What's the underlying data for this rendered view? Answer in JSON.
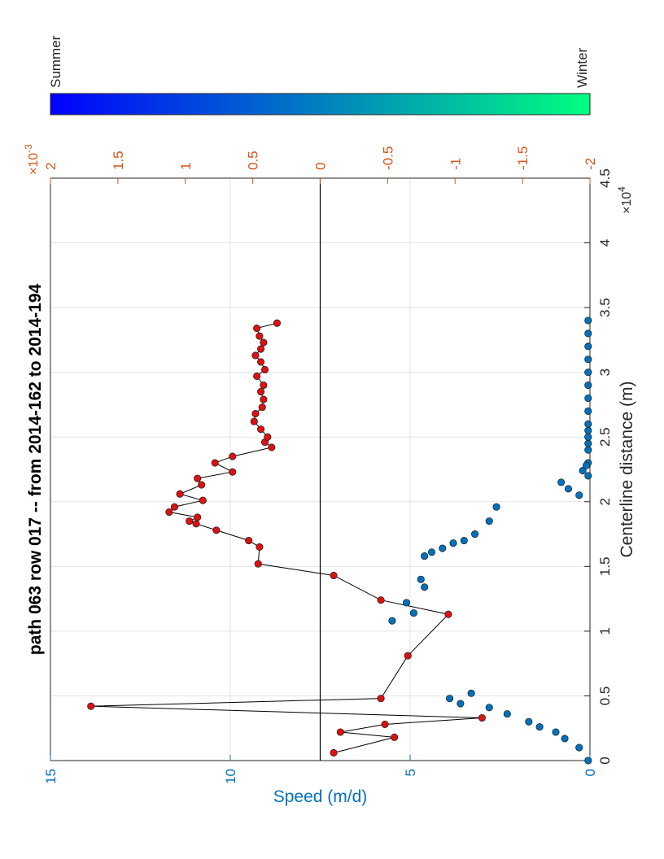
{
  "chart_data": {
    "type": "scatter",
    "title": "path 063 row 017  -- from 2014-162 to 2014-194",
    "xlabel": "Centerline distance (m)",
    "ylabel": "Speed (m/d)",
    "x_exponent": "×10",
    "x_exponent_power": "4",
    "right_axis_exponent": "×10",
    "right_axis_exponent_power": "-3",
    "xlim": [
      0,
      45000
    ],
    "ylim": [
      0,
      15
    ],
    "right_ylim": [
      -0.002,
      0.002
    ],
    "x_ticks": [
      0,
      5000,
      10000,
      15000,
      20000,
      25000,
      30000,
      35000,
      40000,
      45000
    ],
    "x_tick_labels": [
      "0",
      "0.5",
      "1",
      "1.5",
      "2",
      "2.5",
      "3",
      "3.5",
      "4",
      "4.5"
    ],
    "y_ticks": [
      0,
      5,
      10,
      15
    ],
    "y_tick_labels": [
      "0",
      "5",
      "10",
      "15"
    ],
    "right_ticks": [
      -0.002,
      -0.0015,
      -0.001,
      -0.0005,
      0,
      0.0005,
      0.001,
      0.0015,
      0.002
    ],
    "right_tick_labels": [
      "-2",
      "-1.5",
      "-1",
      "-0.5",
      "0",
      "0.5",
      "1",
      "1.5",
      "2"
    ],
    "grid": true,
    "colors": {
      "speed_axis": "#0072BD",
      "strain_axis": "#D95319",
      "speed_points": "#0072BD",
      "strain_points": "#DD1111",
      "zero_line": "#000000",
      "colorbar_start": "#00FF80",
      "colorbar_end": "#0000FF"
    },
    "colorbar": {
      "label_start": "Summer",
      "label_end": "Winter"
    },
    "series": [
      {
        "axis": "left",
        "style": "markers",
        "x": [
          0,
          1000,
          1700,
          2200,
          2600,
          3000,
          3600,
          4100,
          4400,
          4800,
          5200,
          22000,
          23000,
          24000,
          24500,
          25000,
          25500,
          26000,
          27000,
          28000,
          29000,
          30000,
          31000,
          32000,
          33000,
          34000,
          20500,
          21000,
          21500,
          22400,
          22800,
          19600,
          18500,
          17500,
          17000,
          16800,
          16400,
          16100,
          15800,
          14000,
          13400,
          12200,
          11400,
          10800
        ],
        "y": [
          0.05,
          0.3,
          0.7,
          0.95,
          1.4,
          1.7,
          2.3,
          2.8,
          3.6,
          3.9,
          3.3,
          0.05,
          0.05,
          0.05,
          0.05,
          0.05,
          0.05,
          0.05,
          0.05,
          0.05,
          0.05,
          0.05,
          0.05,
          0.05,
          0.05,
          0.05,
          0.3,
          0.6,
          0.8,
          0.2,
          0.1,
          2.6,
          2.8,
          3.2,
          3.5,
          3.8,
          4.1,
          4.4,
          4.6,
          4.7,
          4.6,
          5.1,
          4.9,
          5.5
        ]
      },
      {
        "axis": "right",
        "style": "line-markers",
        "x": [
          600,
          1800,
          2200,
          2800,
          3300,
          4200,
          4800,
          8100,
          11300,
          12400,
          14300,
          15200,
          16500,
          17000,
          17800,
          18300,
          18500,
          18800,
          19200,
          19600,
          20100,
          20600,
          21300,
          21800,
          22300,
          23000,
          23500,
          24200,
          24600,
          25000,
          25600,
          26200,
          26800,
          27300,
          27900,
          28500,
          29000,
          29700,
          30200,
          30800,
          31300,
          31800,
          32300,
          32800,
          33400,
          33800
        ],
        "y": [
          -0.0001,
          -0.00055,
          -0.00015,
          -0.00048,
          -0.0012,
          0.0017,
          -0.00045,
          -0.00065,
          -0.00095,
          -0.00045,
          -0.0001,
          0.00046,
          0.00045,
          0.00053,
          0.00077,
          0.00092,
          0.00097,
          0.00091,
          0.00112,
          0.00108,
          0.00087,
          0.00104,
          0.00088,
          0.00091,
          0.00065,
          0.00078,
          0.00065,
          0.00036,
          0.00041,
          0.00039,
          0.00044,
          0.00049,
          0.00048,
          0.00043,
          0.00042,
          0.00044,
          0.00042,
          0.00047,
          0.00041,
          0.00044,
          0.00048,
          0.00044,
          0.00042,
          0.00045,
          0.00047,
          0.00032
        ]
      }
    ]
  }
}
